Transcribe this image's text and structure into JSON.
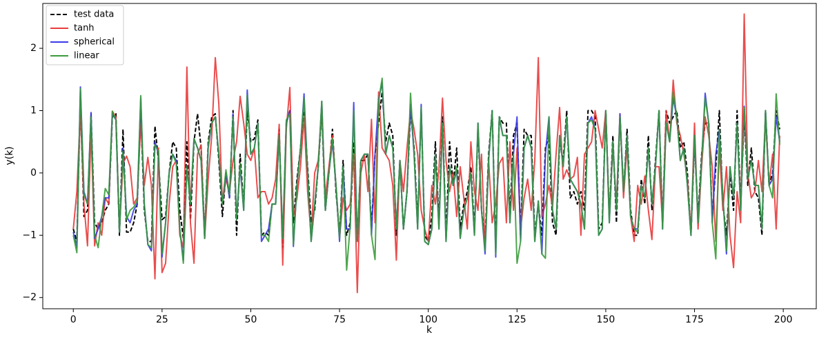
{
  "chart_data": {
    "type": "line",
    "xlabel": "k",
    "ylabel": "y(k)",
    "xlim": [
      -8.6,
      209.3
    ],
    "ylim": [
      -2.18,
      2.72
    ],
    "xticks": [
      0,
      25,
      50,
      75,
      100,
      125,
      150,
      175,
      200
    ],
    "yticks": [
      {
        "value": -2,
        "label": "−2"
      },
      {
        "value": -1,
        "label": "−1"
      },
      0,
      1,
      2
    ],
    "legend": "upper left",
    "x": [
      0,
      1,
      2,
      3,
      4,
      5,
      6,
      7,
      8,
      9,
      10,
      11,
      12,
      13,
      14,
      15,
      16,
      17,
      18,
      19,
      20,
      21,
      22,
      23,
      24,
      25,
      26,
      27,
      28,
      29,
      30,
      31,
      32,
      33,
      34,
      35,
      36,
      37,
      38,
      39,
      40,
      41,
      42,
      43,
      44,
      45,
      46,
      47,
      48,
      49,
      50,
      51,
      52,
      53,
      54,
      55,
      56,
      57,
      58,
      59,
      60,
      61,
      62,
      63,
      64,
      65,
      66,
      67,
      68,
      69,
      70,
      71,
      72,
      73,
      74,
      75,
      76,
      77,
      78,
      79,
      80,
      81,
      82,
      83,
      84,
      85,
      86,
      87,
      88,
      89,
      90,
      91,
      92,
      93,
      94,
      95,
      96,
      97,
      98,
      99,
      100,
      101,
      102,
      103,
      104,
      105,
      106,
      107,
      108,
      109,
      110,
      111,
      112,
      113,
      114,
      115,
      116,
      117,
      118,
      119,
      120,
      121,
      122,
      123,
      124,
      125,
      126,
      127,
      128,
      129,
      130,
      131,
      132,
      133,
      134,
      135,
      136,
      137,
      138,
      139,
      140,
      141,
      142,
      143,
      144,
      145,
      146,
      147,
      148,
      149,
      150,
      151,
      152,
      153,
      154,
      155,
      156,
      157,
      158,
      159,
      160,
      161,
      162,
      163,
      164,
      165,
      166,
      167,
      168,
      169,
      170,
      171,
      172,
      173,
      174,
      175,
      176,
      177,
      178,
      179,
      180,
      181,
      182,
      183,
      184,
      185,
      186,
      187,
      188,
      189,
      190,
      191,
      192,
      193,
      194,
      195,
      196,
      197,
      198,
      199
    ],
    "series": [
      {
        "name": "test data",
        "color": "#000000",
        "linestyle": "dashed",
        "values": [
          -0.9,
          -1.1,
          1.2,
          -0.7,
          -0.6,
          0.95,
          -0.8,
          -0.9,
          -0.8,
          -0.6,
          -0.5,
          0.9,
          0.95,
          -1.0,
          0.7,
          -0.95,
          -0.95,
          -0.8,
          -0.5,
          1.0,
          -0.6,
          -1.1,
          -1.1,
          0.75,
          0.2,
          -0.75,
          -0.7,
          0.0,
          0.5,
          0.4,
          -0.6,
          -1.05,
          0.5,
          -0.75,
          0.5,
          0.95,
          0.4,
          -1.0,
          0.5,
          0.9,
          0.95,
          0.2,
          -0.7,
          0.0,
          -0.4,
          1.0,
          -1.0,
          0.3,
          -0.55,
          1.0,
          0.5,
          0.55,
          0.85,
          -1.0,
          -0.95,
          -1.0,
          -0.5,
          -0.5,
          0.7,
          -1.2,
          0.8,
          1.0,
          -0.8,
          -0.1,
          0.4,
          1.0,
          0.1,
          -0.8,
          -0.6,
          0.1,
          1.0,
          -0.6,
          0.0,
          0.7,
          -0.3,
          -1.0,
          0.2,
          -1.0,
          -0.8,
          0.5,
          -1.1,
          0.2,
          0.2,
          0.3,
          -0.9,
          0.3,
          0.8,
          1.3,
          0.5,
          0.8,
          0.6,
          -1.0,
          0.2,
          -0.9,
          -0.3,
          1.0,
          0.4,
          -0.8,
          1.0,
          -1.0,
          -1.1,
          -0.7,
          0.5,
          -0.8,
          0.9,
          -1.0,
          0.5,
          -0.2,
          0.4,
          -0.9,
          -0.5,
          -0.3,
          0.1,
          -0.9,
          0.7,
          -0.6,
          -1.1,
          0.3,
          1.0,
          -1.2,
          0.9,
          0.8,
          0.8,
          -0.7,
          0.6,
          0.8,
          -1.0,
          0.7,
          0.6,
          0.6,
          -1.0,
          -0.5,
          -1.0,
          0.4,
          0.6,
          -0.8,
          -1.0,
          0.5,
          0.2,
          1.0,
          -0.4,
          -0.3,
          -0.5,
          -0.3,
          -0.6,
          1.0,
          1.0,
          0.9,
          -0.9,
          -0.8,
          1.0,
          -0.7,
          0.6,
          -0.8,
          0.9,
          -0.3,
          0.7,
          -0.6,
          -1.0,
          -1.0,
          -0.1,
          -0.5,
          0.6,
          -0.6,
          0.2,
          1.0,
          -0.8,
          1.0,
          0.8,
          0.9,
          1.0,
          0.4,
          0.5,
          0.0,
          -1.0,
          0.5,
          -0.7,
          0.3,
          0.8,
          0.8,
          -0.7,
          0.1,
          1.0,
          -0.5,
          -1.0,
          0.0,
          -0.6,
          1.0,
          -0.5,
          0.9,
          -0.2,
          0.4,
          -0.3,
          -0.4,
          -1.0,
          1.0,
          -0.2,
          0.0,
          1.0,
          0.7
        ]
      },
      {
        "name": "tanh",
        "color": "#e83a3a",
        "linestyle": "solid",
        "values": [
          -0.9,
          -0.3,
          1.0,
          -0.5,
          -1.17,
          0.7,
          -1.17,
          -0.8,
          -1.0,
          -0.4,
          -0.5,
          0.99,
          0.9,
          -0.9,
          0.15,
          0.27,
          0.1,
          -0.5,
          -0.4,
          0.8,
          -0.2,
          0.25,
          -0.2,
          -1.7,
          0.4,
          -1.6,
          -1.45,
          -0.5,
          0.1,
          0.2,
          -1.0,
          -1.2,
          1.7,
          -0.8,
          -1.45,
          0.3,
          0.45,
          -1.05,
          -0.1,
          0.6,
          1.85,
          1.1,
          -0.5,
          -0.1,
          -0.3,
          0.2,
          0.5,
          1.23,
          0.8,
          0.3,
          0.2,
          0.4,
          -0.4,
          -0.3,
          -0.3,
          -0.5,
          -0.4,
          -0.1,
          0.78,
          -1.48,
          0.7,
          1.37,
          -0.7,
          -0.4,
          0.1,
          0.9,
          -0.3,
          -1.0,
          0.0,
          0.2,
          1.0,
          -0.4,
          0.1,
          0.6,
          -0.2,
          -1.05,
          -0.4,
          -0.6,
          -0.5,
          0.3,
          -1.92,
          0.0,
          0.3,
          -0.3,
          0.86,
          -0.8,
          1.3,
          0.4,
          0.3,
          0.2,
          -0.2,
          -1.4,
          0.2,
          -0.3,
          0.4,
          1.0,
          0.7,
          0.3,
          -0.6,
          -0.9,
          -1.1,
          -0.2,
          -0.5,
          0.05,
          1.2,
          0.2,
          -0.3,
          0.0,
          -0.7,
          0.1,
          -0.4,
          -0.9,
          0.5,
          -0.3,
          -0.6,
          0.3,
          -1.2,
          0.2,
          -0.8,
          -0.5,
          0.15,
          0.25,
          -0.8,
          0.5,
          -0.6,
          0.4,
          -0.9,
          -0.4,
          -0.1,
          -0.6,
          0.2,
          1.85,
          -0.7,
          -0.5,
          -0.2,
          -0.55,
          0.3,
          1.05,
          -0.1,
          0.05,
          -0.1,
          -0.05,
          0.25,
          -1.0,
          0.3,
          0.4,
          0.5,
          1.0,
          0.7,
          0.4,
          1.0,
          -0.7,
          0.4,
          -0.5,
          0.95,
          -0.4,
          0.45,
          -0.7,
          -1.1,
          -0.2,
          -0.5,
          -0.05,
          -0.6,
          -1.07,
          0.1,
          0.1,
          -0.8,
          1.0,
          0.5,
          1.49,
          0.8,
          0.6,
          0.3,
          -0.1,
          -0.95,
          0.8,
          -0.9,
          0.1,
          0.9,
          0.6,
          0.1,
          -1.1,
          0.4,
          -0.6,
          0.1,
          -1.0,
          -1.52,
          -0.3,
          -0.8,
          2.55,
          0.0,
          -0.4,
          -0.3,
          0.2,
          -0.3,
          0.9,
          -0.2,
          0.3,
          -0.9,
          0.6
        ]
      },
      {
        "name": "spherical",
        "color": "#3a3ae8",
        "linestyle": "solid",
        "values": [
          -0.95,
          -1.2,
          1.38,
          -0.3,
          -0.5,
          0.97,
          -1.05,
          -0.9,
          -0.7,
          -0.4,
          -0.4,
          0.95,
          0.85,
          -0.95,
          0.4,
          -0.7,
          -0.8,
          -0.6,
          -0.5,
          1.2,
          -0.5,
          -1.15,
          -1.25,
          0.5,
          0.3,
          -1.35,
          -0.8,
          0.0,
          0.3,
          0.2,
          -0.9,
          -1.4,
          0.1,
          -0.5,
          0.55,
          0.4,
          0.2,
          -1.05,
          0.4,
          0.8,
          0.9,
          0.3,
          -0.5,
          0.0,
          -0.4,
          0.95,
          -0.75,
          0.1,
          -0.6,
          1.33,
          0.3,
          0.4,
          0.8,
          -1.1,
          -1.0,
          -0.9,
          -0.5,
          -0.5,
          0.6,
          -1.05,
          0.8,
          1.0,
          -1.18,
          -0.2,
          0.4,
          1.27,
          0.0,
          -1.1,
          -0.5,
          0.1,
          1.15,
          -0.6,
          0.0,
          0.5,
          -0.2,
          -1.1,
          0.1,
          -0.9,
          -0.9,
          1.13,
          -1.1,
          0.2,
          0.3,
          0.3,
          -1.0,
          0.3,
          1.18,
          1.45,
          0.3,
          0.6,
          0.4,
          -0.9,
          0.2,
          -0.9,
          -0.3,
          1.1,
          0.3,
          -0.9,
          1.1,
          -1.1,
          -1.15,
          -0.9,
          0.3,
          -0.9,
          0.8,
          -1.1,
          0.1,
          -0.2,
          0.05,
          -1.05,
          -0.6,
          -0.4,
          0.0,
          -1.0,
          0.8,
          -0.6,
          -1.3,
          0.2,
          1.0,
          -1.35,
          0.9,
          0.6,
          0.6,
          -0.8,
          0.3,
          0.9,
          -1.1,
          0.4,
          0.6,
          0.4,
          -1.1,
          -0.45,
          -1.3,
          0.3,
          0.9,
          -0.6,
          -0.9,
          0.6,
          0.1,
          0.9,
          -0.1,
          -0.2,
          -0.3,
          -0.5,
          -0.9,
          0.8,
          0.9,
          0.7,
          -1.0,
          -0.9,
          1.0,
          -0.8,
          0.5,
          -0.6,
          0.95,
          -0.3,
          0.6,
          -0.7,
          -0.9,
          -0.9,
          -0.2,
          -0.4,
          0.4,
          -0.5,
          0.1,
          1.0,
          -0.9,
          0.8,
          0.5,
          1.2,
          0.9,
          0.2,
          0.4,
          -0.2,
          -1.0,
          0.6,
          -0.8,
          0.2,
          1.28,
          0.8,
          -0.8,
          0.3,
          0.7,
          -0.4,
          -1.3,
          0.1,
          -0.4,
          0.8,
          -0.6,
          1.07,
          -0.1,
          0.2,
          -0.2,
          -0.2,
          -0.9,
          1.0,
          -0.2,
          -0.1,
          0.9,
          0.5
        ]
      },
      {
        "name": "linear",
        "color": "#3a9a3a",
        "linestyle": "solid",
        "values": [
          -1.0,
          -1.28,
          1.35,
          -0.35,
          -0.5,
          0.9,
          -1.0,
          -1.2,
          -0.7,
          -0.25,
          -0.35,
          0.99,
          0.85,
          -0.95,
          0.35,
          -0.75,
          -0.6,
          -0.55,
          -0.45,
          1.24,
          -0.5,
          -1.15,
          -1.2,
          0.45,
          0.35,
          -1.3,
          -0.8,
          0.0,
          0.3,
          0.15,
          -0.9,
          -1.45,
          0.1,
          -0.5,
          0.55,
          0.4,
          0.2,
          -1.05,
          0.45,
          0.8,
          0.9,
          0.3,
          -0.5,
          0.05,
          -0.35,
          0.9,
          -0.75,
          0.15,
          -0.6,
          1.25,
          0.3,
          0.4,
          0.8,
          -1.0,
          -1.0,
          -1.1,
          -0.5,
          -0.5,
          0.6,
          -1.05,
          0.85,
          0.95,
          -1.15,
          -0.2,
          0.4,
          1.2,
          0.0,
          -1.1,
          -0.5,
          0.1,
          1.15,
          -0.6,
          0.0,
          0.55,
          -0.2,
          -1.05,
          0.1,
          -1.56,
          -0.85,
          1.0,
          -1.1,
          0.2,
          0.3,
          0.3,
          -1.0,
          -1.39,
          1.15,
          1.52,
          0.3,
          0.6,
          0.4,
          -0.9,
          0.2,
          -0.9,
          -0.3,
          1.28,
          0.3,
          -0.9,
          1.05,
          -1.1,
          -1.15,
          -0.9,
          0.3,
          -0.9,
          0.8,
          -1.1,
          0.1,
          -0.2,
          0.1,
          -1.05,
          -0.6,
          -0.4,
          0.0,
          -1.0,
          0.8,
          -0.6,
          -1.25,
          0.2,
          1.0,
          -1.3,
          0.9,
          0.6,
          0.6,
          -0.8,
          0.3,
          -1.45,
          -1.1,
          0.4,
          0.6,
          0.4,
          -1.1,
          -0.45,
          -1.3,
          -1.37,
          0.9,
          -0.6,
          -0.9,
          0.6,
          0.1,
          0.9,
          -0.1,
          -0.2,
          -0.3,
          -0.5,
          -0.9,
          0.8,
          0.85,
          0.7,
          -1.0,
          -0.9,
          1.0,
          -0.8,
          0.5,
          -0.6,
          0.9,
          -0.3,
          0.6,
          -0.7,
          -0.9,
          -0.95,
          -0.2,
          -0.4,
          0.4,
          -0.5,
          0.1,
          1.0,
          -0.9,
          0.8,
          0.5,
          1.3,
          0.9,
          0.2,
          0.4,
          -0.2,
          -1.0,
          0.6,
          -0.8,
          0.2,
          1.2,
          0.8,
          -0.8,
          -1.38,
          0.7,
          -0.4,
          -1.25,
          0.1,
          -0.4,
          0.8,
          -0.6,
          1.05,
          -0.1,
          0.2,
          -0.2,
          -0.2,
          -0.9,
          1.0,
          -0.2,
          -0.4,
          1.27,
          0.45
        ]
      }
    ]
  }
}
